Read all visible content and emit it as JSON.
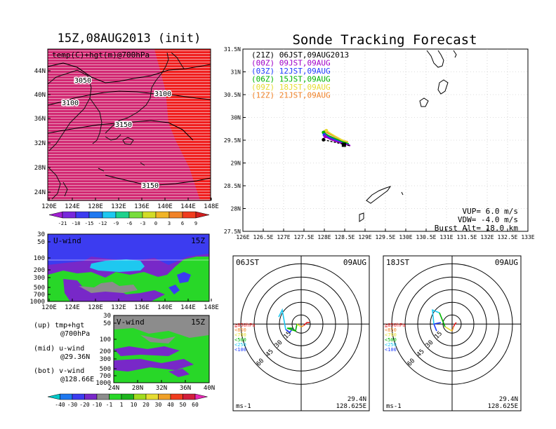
{
  "colors": {
    "map_red": "#f01e1e",
    "map_magenta": "#d22873",
    "uwind_blue": "#3c3cf0",
    "uwind_cyan": "#1ec8f0",
    "uwind_purple": "#7828c8",
    "wind_green": "#28d728",
    "wind_gray": "#8c8c8c",
    "track_purple": "#a000c8",
    "track_blue": "#1e3cff",
    "track_green": "#00b400",
    "track_yellow": "#e6dc32",
    "track_orange": "#f08228"
  },
  "top_left_map": {
    "title": "15Z,08AUG2013 (init)",
    "label": "temp(C)+hgt(m)@700hPa",
    "contour_labels": [
      "3050",
      "3100",
      "3100",
      "3150",
      "3150"
    ],
    "ytick_labels": [
      "44N",
      "40N",
      "36N",
      "32N",
      "28N",
      "24N"
    ],
    "xtick_labels": [
      "120E",
      "124E",
      "128E",
      "132E",
      "136E",
      "140E",
      "144E",
      "148E"
    ],
    "colorbar_labels": [
      "-21",
      "-18",
      "-15",
      "-12",
      "-9",
      "-6",
      "-3",
      "0",
      "3",
      "6",
      "9"
    ]
  },
  "uwind_panel": {
    "label": "U-wind",
    "time": "15Z",
    "ytick_labels": [
      "30",
      "50",
      "100",
      "200",
      "300",
      "500",
      "700",
      "1000"
    ],
    "xtick_labels": [
      "120E",
      "124E",
      "128E",
      "132E",
      "136E",
      "140E",
      "144E",
      "148E"
    ]
  },
  "vwind_panel": {
    "label": "V-wind",
    "time": "15Z",
    "ytick_labels": [
      "30",
      "50",
      "100",
      "200",
      "300",
      "500",
      "700",
      "1000"
    ],
    "xtick_labels": [
      "24N",
      "28N",
      "32N",
      "36N",
      "40N"
    ]
  },
  "panel_notes": {
    "top_line1": "(up) tmp+hgt",
    "top_line2": "@700hPa",
    "mid_line1": "(mid) u-wind",
    "mid_line2": "@29.36N",
    "bot_line1": "(bot) v-wind",
    "bot_line2": "@128.66E"
  },
  "wind_colorbar_labels": [
    "-40",
    "-30",
    "-20",
    "-10",
    "-1",
    "1",
    "10",
    "20",
    "30",
    "40",
    "50",
    "60"
  ],
  "tracking": {
    "title": "Sonde Tracking Forecast",
    "legend": [
      {
        "text": "(21Z) 06JST,09AUG2013",
        "color": "#000000"
      },
      {
        "text": "(00Z) 09JST,09AUG",
        "color": "#a000c8"
      },
      {
        "text": "(03Z) 12JST,09AUG",
        "color": "#1e3cff"
      },
      {
        "text": "(06Z) 15JST,09AUG",
        "color": "#00b400"
      },
      {
        "text": "(09Z) 18JST,09AUG",
        "color": "#e6dc32"
      },
      {
        "text": "(12Z) 21JST,09AUG",
        "color": "#f08228"
      }
    ],
    "ytick_labels": [
      "31.5N",
      "31N",
      "30.5N",
      "30N",
      "29.5N",
      "29N",
      "28.5N",
      "28N",
      "27.5N"
    ],
    "xtick_labels": [
      "126E",
      "126.5E",
      "127E",
      "127.5E",
      "128E",
      "128.5E",
      "129E",
      "129.5E",
      "130E",
      "130.5E",
      "131E",
      "131.5E",
      "132E",
      "132.5E",
      "133E"
    ],
    "vup": "VUP= 6.0 m/s",
    "vdw": "VDW= -4.0 m/s",
    "burst": "Burst Alt= 18.0 km"
  },
  "hodo_left": {
    "time": "06JST",
    "date": "09AUG",
    "ring_labels": [
      "15",
      "30",
      "45",
      "60"
    ],
    "unit": "ms-1",
    "lat": "29.4N",
    "lon": "128.625E"
  },
  "hodo_right": {
    "time": "18JST",
    "date": "09AUG",
    "ring_labels": [
      "15",
      "30",
      "45",
      "60"
    ],
    "unit": "ms-1",
    "lat": "29.4N",
    "lon": "128.625E"
  },
  "hodo_legend": [
    {
      "text": "≧850hPa",
      "color": "#e61e1e"
    },
    {
      "text": "<850",
      "color": "#f08228"
    },
    {
      "text": "<700",
      "color": "#e6dc32"
    },
    {
      "text": "<500",
      "color": "#00b400"
    },
    {
      "text": "<250",
      "color": "#1ec8f0"
    },
    {
      "text": "<100",
      "color": "#1e3cff"
    }
  ]
}
